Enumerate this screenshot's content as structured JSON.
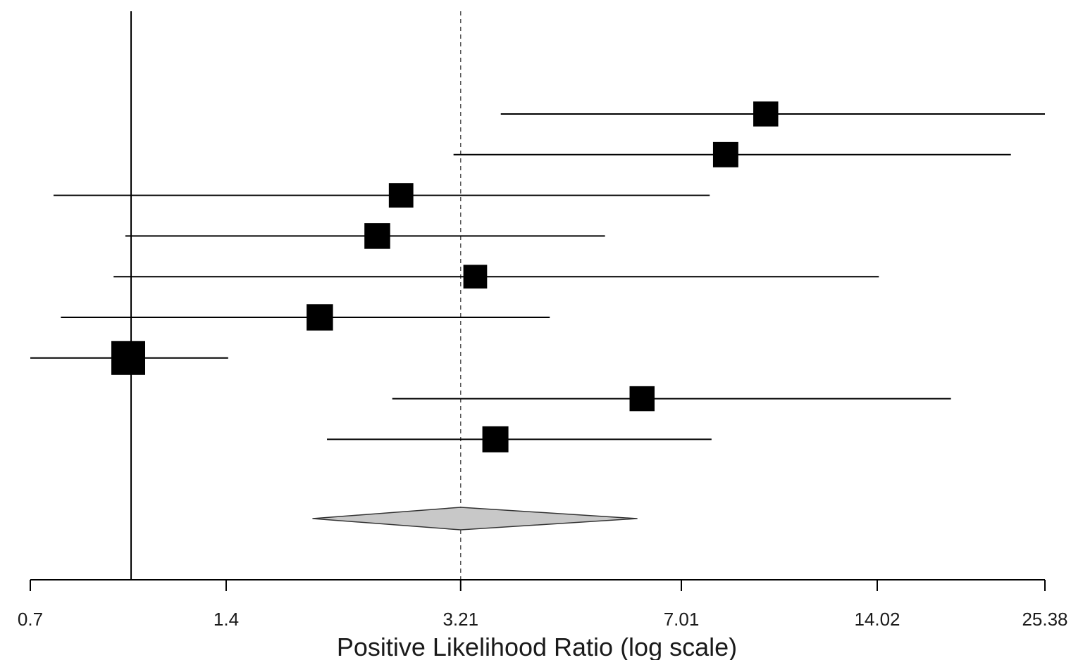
{
  "chart_data": {
    "type": "forest",
    "xlabel": "Positive Likelihood Ratio (log scale)",
    "x_scale": "log",
    "xlim": [
      0.7,
      25.38
    ],
    "x_ticks": [
      0.7,
      1.4,
      3.21,
      7.01,
      14.02,
      25.38
    ],
    "x_tick_labels": [
      "0.7",
      "1.4",
      "3.21",
      "7.01",
      "14.02",
      "25.38"
    ],
    "null_line": 1.0,
    "pooled_line": 3.21,
    "studies": [
      {
        "estimate": 9.45,
        "ci_low": 3.7,
        "ci_high": 25.38,
        "weight": 0.43
      },
      {
        "estimate": 8.2,
        "ci_low": 3.13,
        "ci_high": 22.5,
        "weight": 0.45
      },
      {
        "estimate": 2.6,
        "ci_low": 0.76,
        "ci_high": 7.75,
        "weight": 0.4
      },
      {
        "estimate": 2.39,
        "ci_low": 0.98,
        "ci_high": 5.35,
        "weight": 0.48
      },
      {
        "estimate": 3.38,
        "ci_low": 0.94,
        "ci_high": 14.1,
        "weight": 0.35
      },
      {
        "estimate": 1.95,
        "ci_low": 0.78,
        "ci_high": 4.4,
        "weight": 0.52
      },
      {
        "estimate": 0.99,
        "ci_low": 0.7,
        "ci_high": 1.41,
        "weight": 1.0
      },
      {
        "estimate": 6.1,
        "ci_low": 2.52,
        "ci_high": 18.2,
        "weight": 0.43
      },
      {
        "estimate": 3.63,
        "ci_low": 2.0,
        "ci_high": 7.8,
        "weight": 0.5
      }
    ],
    "pooled": {
      "estimate": 3.21,
      "ci_low": 1.9,
      "ci_high": 6.0
    },
    "colors": {
      "marker": "#000000",
      "pooled_fill": "#c8c8c8",
      "line": "#000000",
      "pooled_line": "#555555"
    },
    "grid": false
  }
}
